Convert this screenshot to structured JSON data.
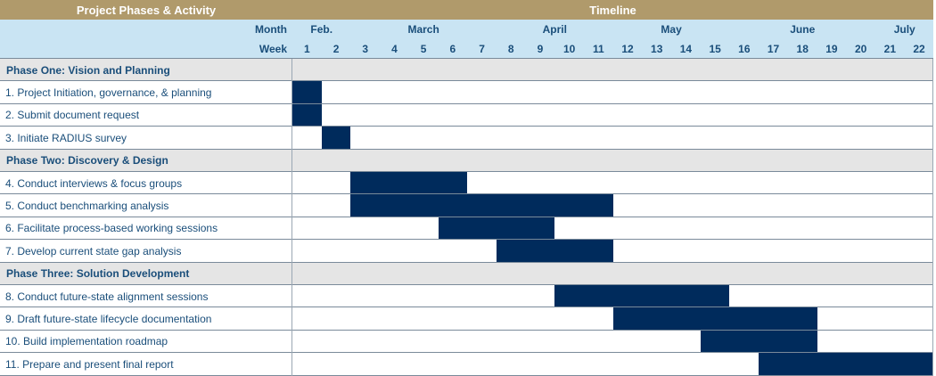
{
  "header": {
    "left_title": "Project Phases & Activity",
    "right_title": "Timeline",
    "month_label": "Month",
    "week_label": "Week"
  },
  "colors": {
    "header_gold": "#b09a6b",
    "header_blue": "#c9e4f3",
    "phase_gray": "#e5e5e5",
    "bar_navy": "#002b5c",
    "text_blue": "#1a4e7a"
  },
  "chart_data": {
    "type": "gantt",
    "months": [
      {
        "name": "Feb.",
        "start_week": 1,
        "end_week": 2
      },
      {
        "name": "March",
        "start_week": 3,
        "end_week": 7
      },
      {
        "name": "April",
        "start_week": 8,
        "end_week": 11
      },
      {
        "name": "May",
        "start_week": 12,
        "end_week": 15
      },
      {
        "name": "June",
        "start_week": 16,
        "end_week": 20
      },
      {
        "name": "July",
        "start_week": 21,
        "end_week": 22
      }
    ],
    "weeks": [
      "1",
      "2",
      "3",
      "4",
      "5",
      "6",
      "7",
      "8",
      "9",
      "10",
      "11",
      "12",
      "13",
      "14",
      "15",
      "16",
      "17",
      "18",
      "19",
      "20",
      "21",
      "22"
    ],
    "rows": [
      {
        "kind": "phase",
        "label": "Phase One: Vision and Planning"
      },
      {
        "kind": "task",
        "label": "1. Project Initiation, governance, & planning",
        "start_week": 1,
        "end_week": 1
      },
      {
        "kind": "task",
        "label": "2. Submit document request",
        "start_week": 1,
        "end_week": 1
      },
      {
        "kind": "task",
        "label": "3. Initiate RADIUS survey",
        "start_week": 2,
        "end_week": 2
      },
      {
        "kind": "phase",
        "label": "Phase Two: Discovery & Design"
      },
      {
        "kind": "task",
        "label": "4. Conduct interviews & focus groups",
        "start_week": 3,
        "end_week": 6
      },
      {
        "kind": "task",
        "label": "5. Conduct benchmarking analysis",
        "start_week": 3,
        "end_week": 11
      },
      {
        "kind": "task",
        "label": "6. Facilitate process-based working sessions",
        "start_week": 6,
        "end_week": 9
      },
      {
        "kind": "task",
        "label": "7. Develop current state gap analysis",
        "start_week": 8,
        "end_week": 11
      },
      {
        "kind": "phase",
        "label": "Phase Three: Solution Development"
      },
      {
        "kind": "task",
        "label": "8. Conduct future-state alignment sessions",
        "start_week": 10,
        "end_week": 15
      },
      {
        "kind": "task",
        "label": "9. Draft future-state lifecycle documentation",
        "start_week": 12,
        "end_week": 18
      },
      {
        "kind": "task",
        "label": "10. Build implementation roadmap",
        "start_week": 15,
        "end_week": 18
      },
      {
        "kind": "task",
        "label": "11. Prepare and present final report",
        "start_week": 17,
        "end_week": 22
      }
    ]
  }
}
